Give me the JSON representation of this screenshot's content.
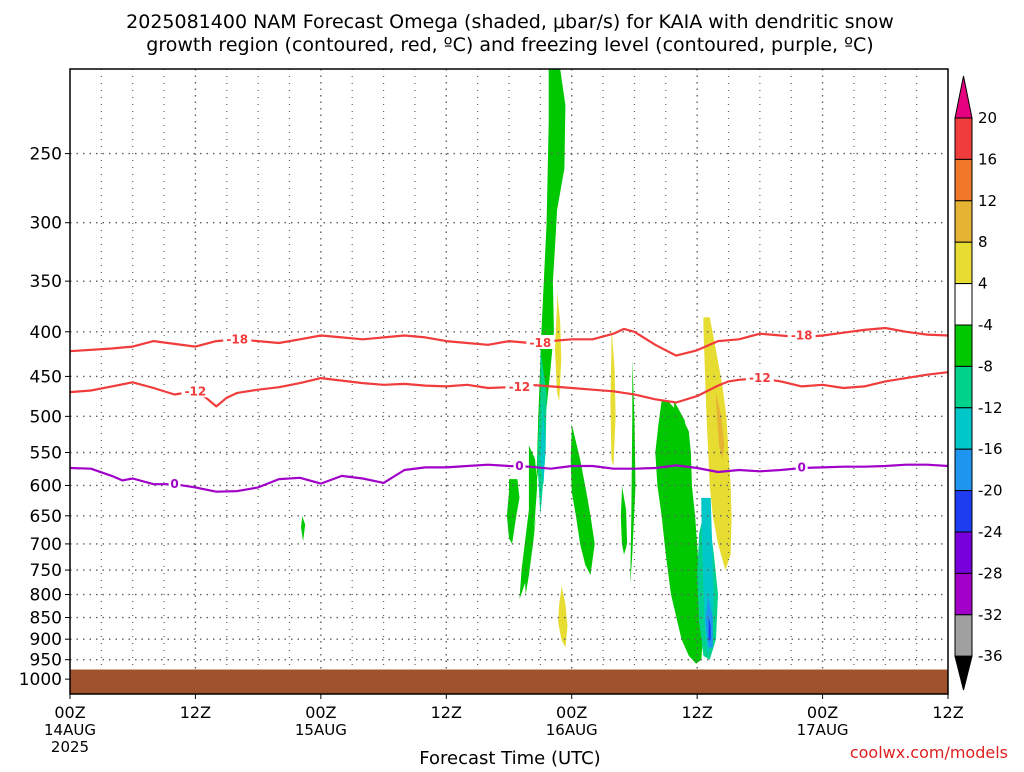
{
  "chart_data": {
    "type": "heatmap",
    "title_line1": "2025081400 NAM Forecast Omega (shaded, μbar/s) for KAIA with dendritic snow",
    "title_line2": "growth region (contoured, red, ºC) and freezing level (contoured, purple, ºC)",
    "xlabel": "Forecast Time (UTC)",
    "ylabel": "",
    "x_range_hours": [
      0,
      84
    ],
    "y_scale": "log-pressure",
    "y_range_mb": [
      1040,
      200
    ],
    "grid": true,
    "legend_position": "right",
    "credit": "coolwx.com/models",
    "x_ticks": [
      {
        "hour": 0,
        "line1": "00Z",
        "line2": "14AUG",
        "line3": "2025"
      },
      {
        "hour": 12,
        "line1": "12Z",
        "line2": "",
        "line3": ""
      },
      {
        "hour": 24,
        "line1": "00Z",
        "line2": "15AUG",
        "line3": ""
      },
      {
        "hour": 36,
        "line1": "12Z",
        "line2": "",
        "line3": ""
      },
      {
        "hour": 48,
        "line1": "00Z",
        "line2": "16AUG",
        "line3": ""
      },
      {
        "hour": 60,
        "line1": "12Z",
        "line2": "",
        "line3": ""
      },
      {
        "hour": 72,
        "line1": "00Z",
        "line2": "17AUG",
        "line3": ""
      },
      {
        "hour": 84,
        "line1": "12Z",
        "line2": "",
        "line3": ""
      }
    ],
    "y_ticks": [
      250,
      300,
      350,
      400,
      450,
      500,
      550,
      600,
      650,
      700,
      750,
      800,
      850,
      900,
      950,
      1000
    ],
    "colorbar": {
      "labels": [
        "20",
        "16",
        "12",
        "8",
        "4",
        "-4",
        "-8",
        "-12",
        "-16",
        "-20",
        "-24",
        "-28",
        "-32",
        "-36"
      ],
      "colors": [
        "#f03c3c",
        "#f07828",
        "#e6b432",
        "#e6dc32",
        "#ffffff",
        "#00c800",
        "#00d28c",
        "#00c8c8",
        "#1e96f0",
        "#1e3cf0",
        "#7800dc",
        "#a000c8",
        "#a0a0a0"
      ],
      "top_arrow_color": "#e6007f",
      "bottom_arrow_color": "#000000"
    },
    "terrain": {
      "pressure_mb": 975,
      "color": "#a0522d"
    },
    "contours": [
      {
        "label": "-18",
        "color": "#f03c3c",
        "x": [
          0,
          4,
          6,
          8,
          10,
          12,
          14,
          16,
          18,
          20,
          22,
          24,
          26,
          28,
          30,
          32,
          34,
          36,
          38,
          40,
          42,
          44,
          46,
          47,
          48,
          50,
          52,
          53,
          54,
          56,
          57,
          58,
          60,
          62,
          64,
          66,
          68,
          70,
          72,
          74,
          76,
          78,
          80,
          82,
          84
        ],
        "y": [
          421,
          418,
          416,
          410,
          413,
          416,
          410,
          408,
          410,
          412,
          408,
          404,
          406,
          408,
          406,
          404,
          406,
          410,
          412,
          414,
          410,
          412,
          410,
          409,
          408,
          408,
          402,
          397,
          400,
          414,
          420,
          426,
          420,
          410,
          408,
          402,
          404,
          406,
          404,
          401,
          398,
          396,
          400,
          403,
          404
        ],
        "label_at": [
          [
            16,
            408
          ],
          [
            45,
            412
          ],
          [
            70,
            404
          ]
        ]
      },
      {
        "label": "-12",
        "color": "#f03c3c",
        "x": [
          0,
          2,
          4,
          6,
          8,
          10,
          12,
          13,
          14,
          15,
          16,
          18,
          20,
          22,
          24,
          26,
          28,
          30,
          32,
          34,
          36,
          38,
          40,
          42,
          44,
          46,
          48,
          50,
          52,
          53,
          54,
          56,
          58,
          60,
          62,
          63,
          64,
          66,
          68,
          70,
          72,
          74,
          76,
          78,
          80,
          82,
          84
        ],
        "y": [
          469,
          467,
          462,
          457,
          464,
          472,
          468,
          476,
          487,
          476,
          470,
          466,
          463,
          458,
          452,
          455,
          458,
          460,
          459,
          461,
          462,
          460,
          464,
          463,
          460,
          462,
          464,
          466,
          468,
          470,
          472,
          478,
          482,
          474,
          461,
          456,
          454,
          452,
          456,
          462,
          460,
          464,
          462,
          456,
          452,
          448,
          445
        ],
        "label_at": [
          [
            12,
            468
          ],
          [
            43,
            463
          ],
          [
            66,
            452
          ]
        ]
      },
      {
        "label": "0",
        "color": "#a000c8",
        "x": [
          0,
          2,
          4,
          5,
          6,
          8,
          10,
          12,
          14,
          16,
          18,
          20,
          22,
          24,
          26,
          28,
          30,
          32,
          34,
          36,
          38,
          40,
          42,
          44,
          46,
          48,
          50,
          52,
          54,
          56,
          58,
          60,
          62,
          64,
          66,
          68,
          70,
          72,
          74,
          76,
          78,
          80,
          82,
          84
        ],
        "y": [
          573,
          574,
          585,
          592,
          589,
          598,
          598,
          603,
          610,
          609,
          603,
          590,
          588,
          597,
          585,
          589,
          596,
          576,
          572,
          572,
          570,
          568,
          570,
          571,
          574,
          570,
          570,
          574,
          574,
          573,
          569,
          573,
          579,
          576,
          578,
          576,
          573,
          572,
          571,
          571,
          570,
          568,
          568,
          570
        ],
        "label_at": [
          [
            10,
            598
          ],
          [
            43,
            570
          ],
          [
            70,
            572
          ]
        ]
      }
    ],
    "shaded_regions": [
      {
        "color": "#00c800",
        "x": [
          45.8,
          46.9,
          47.4,
          47.3,
          46.6,
          46.4,
          46.2,
          46.3,
          45.9,
          45.5,
          45.0,
          44.6,
          44.6,
          44.3,
          43.9,
          43.6,
          43.5,
          44.2,
          44.6,
          44.6,
          44.8,
          45.1,
          45.6,
          45.8
        ],
        "y": [
          200,
          200,
          220,
          260,
          290,
          320,
          350,
          400,
          450,
          500,
          550,
          600,
          650,
          700,
          760,
          800,
          760,
          700,
          650,
          600,
          500,
          400,
          300,
          230
        ]
      },
      {
        "color": "#00c800",
        "x": [
          43.9,
          44.5,
          44.7,
          44.5,
          44.3,
          43.8,
          43.0,
          43.2,
          43.9
        ],
        "y": [
          540,
          560,
          600,
          650,
          700,
          760,
          810,
          750,
          640
        ]
      },
      {
        "color": "#00c800",
        "x": [
          42.0,
          42.8,
          43.0,
          42.7,
          42.3,
          42.0,
          41.8,
          42.0
        ],
        "y": [
          590,
          590,
          620,
          650,
          700,
          690,
          650,
          610
        ]
      },
      {
        "color": "#00d28c",
        "x": [
          45.0,
          45.6,
          45.5,
          45.0,
          44.7,
          45.0
        ],
        "y": [
          420,
          470,
          550,
          650,
          560,
          470
        ]
      },
      {
        "color": "#00c8c8",
        "x": [
          45.2,
          45.5,
          45.3,
          45.0,
          45.2
        ],
        "y": [
          480,
          540,
          600,
          560,
          500
        ]
      },
      {
        "color": "#00c800",
        "x": [
          48.0,
          48.8,
          49.4,
          49.8,
          50.2,
          49.8,
          49.3,
          48.8,
          48.4,
          48.0,
          47.9,
          48.0
        ],
        "y": [
          510,
          560,
          610,
          650,
          700,
          760,
          740,
          700,
          650,
          610,
          560,
          520
        ]
      },
      {
        "color": "#00c800",
        "x": [
          53.8,
          54.0,
          54.1,
          53.8,
          53.6,
          53.7,
          53.8
        ],
        "y": [
          430,
          500,
          600,
          720,
          780,
          650,
          500
        ]
      },
      {
        "color": "#00c800",
        "x": [
          56.6,
          57.2,
          58.5,
          59.2,
          59.4,
          59.5,
          59.8,
          60.0,
          60.2,
          60.4,
          60.6,
          60.4,
          59.9,
          59.2,
          58.5,
          57.5,
          57.0,
          56.6,
          56.2,
          56.0,
          56.3,
          56.6
        ],
        "y": [
          480,
          480,
          500,
          520,
          550,
          600,
          650,
          700,
          760,
          820,
          880,
          950,
          960,
          940,
          900,
          800,
          720,
          650,
          600,
          550,
          510,
          480
        ]
      },
      {
        "color": "#00c800",
        "x": [
          57.8,
          58.8,
          59.2,
          58.5,
          57.9,
          57.8
        ],
        "y": [
          480,
          505,
          540,
          560,
          540,
          500
        ]
      },
      {
        "color": "#00c800",
        "x": [
          52.8,
          53.2,
          53.3,
          53.0,
          52.8,
          52.7,
          52.8
        ],
        "y": [
          600,
          640,
          700,
          720,
          700,
          650,
          610
        ]
      },
      {
        "color": "#00c800",
        "x": [
          22.2,
          22.5,
          22.3,
          22.1,
          22.2
        ],
        "y": [
          650,
          665,
          695,
          670,
          655
        ]
      },
      {
        "color": "#00d28c",
        "x": [
          60.6,
          61.2,
          61.6,
          62.0,
          61.8,
          61.2,
          60.6,
          60.2,
          60.0,
          60.2,
          60.6
        ],
        "y": [
          640,
          660,
          720,
          800,
          900,
          950,
          940,
          860,
          760,
          680,
          650
        ]
      },
      {
        "color": "#00c8c8",
        "x": [
          60.4,
          61.3,
          61.4,
          61.6,
          61.4,
          61.0,
          60.7,
          60.5,
          60.4
        ],
        "y": [
          620,
          620,
          680,
          800,
          900,
          940,
          860,
          720,
          640
        ]
      },
      {
        "color": "#1e96f0",
        "x": [
          61.0,
          61.5,
          61.5,
          61.1,
          60.8,
          61.0
        ],
        "y": [
          800,
          850,
          920,
          920,
          860,
          810
        ]
      },
      {
        "color": "#1e3cf0",
        "x": [
          61.1,
          61.3,
          61.3,
          61.1,
          61.1
        ],
        "y": [
          850,
          870,
          900,
          905,
          860
        ]
      },
      {
        "color": "#e6dc32",
        "x": [
          46.6,
          46.9,
          47.0,
          46.8,
          46.6,
          46.4,
          46.6
        ],
        "y": [
          360,
          390,
          430,
          480,
          470,
          420,
          370
        ]
      },
      {
        "color": "#e6dc32",
        "x": [
          51.8,
          52.1,
          52.2,
          52.0,
          51.8,
          51.7,
          51.8
        ],
        "y": [
          395,
          440,
          500,
          570,
          560,
          480,
          420
        ]
      },
      {
        "color": "#e6dc32",
        "x": [
          60.6,
          61.2,
          61.8,
          62.4,
          62.8,
          63.0,
          63.2,
          63.3,
          63.2,
          62.7,
          62.0,
          61.5,
          61.2,
          60.9,
          60.7,
          60.6
        ],
        "y": [
          385,
          385,
          420,
          460,
          500,
          550,
          600,
          650,
          720,
          750,
          700,
          650,
          600,
          500,
          430,
          395
        ]
      },
      {
        "color": "#e6b432",
        "x": [
          61.8,
          62.3,
          62.6,
          62.4,
          62.1,
          61.9,
          61.8
        ],
        "y": [
          470,
          500,
          540,
          560,
          540,
          500,
          480
        ]
      },
      {
        "color": "#e6dc32",
        "x": [
          47.0,
          47.4,
          47.6,
          47.4,
          47.0,
          46.7,
          46.8,
          47.0
        ],
        "y": [
          780,
          820,
          870,
          920,
          900,
          860,
          820,
          790
        ]
      }
    ]
  }
}
